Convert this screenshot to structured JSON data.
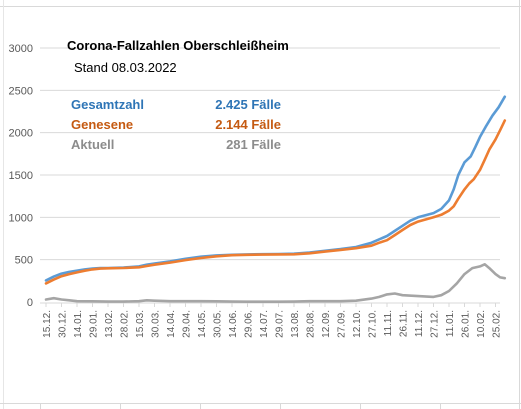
{
  "chart_data": {
    "type": "line",
    "title": "Corona-Fallzahlen Oberschleißheim",
    "subtitle": "Stand 08.03.2022",
    "ylim": [
      0,
      3000
    ],
    "yticks": [
      0,
      500,
      1000,
      1500,
      2000,
      2500,
      3000
    ],
    "grid": true,
    "legend_placement": "top-left",
    "x_labels": [
      "15.12.",
      "30.12.",
      "14.01.",
      "29.01.",
      "13.02.",
      "28.02.",
      "15.03.",
      "30.03.",
      "14.04.",
      "29.04.",
      "14.05.",
      "30.05.",
      "14.06.",
      "29.06.",
      "14.07.",
      "29.07.",
      "13.08.",
      "28.08.",
      "12.09.",
      "27.09.",
      "12.10.",
      "27.10.",
      "11.11.",
      "26.11.",
      "11.12.",
      "27.12.",
      "11.01.",
      "26.01.",
      "10.02.",
      "25.02."
    ],
    "series": [
      {
        "name": "Gesamtzahl",
        "color": "#5b9bd5",
        "value_label": "2.425 Fälle",
        "points": [
          [
            0,
            255
          ],
          [
            0.5,
            300
          ],
          [
            1,
            335
          ],
          [
            1.5,
            355
          ],
          [
            2,
            370
          ],
          [
            2.5,
            385
          ],
          [
            3,
            395
          ],
          [
            3.5,
            400
          ],
          [
            4,
            402
          ],
          [
            5,
            408
          ],
          [
            6,
            420
          ],
          [
            6.5,
            440
          ],
          [
            7,
            455
          ],
          [
            8,
            480
          ],
          [
            9,
            510
          ],
          [
            10,
            535
          ],
          [
            11,
            550
          ],
          [
            12,
            558
          ],
          [
            13,
            562
          ],
          [
            14,
            565
          ],
          [
            15,
            566
          ],
          [
            16,
            570
          ],
          [
            17,
            585
          ],
          [
            18,
            605
          ],
          [
            19,
            625
          ],
          [
            20,
            650
          ],
          [
            21,
            700
          ],
          [
            21.5,
            740
          ],
          [
            22,
            780
          ],
          [
            22.5,
            840
          ],
          [
            23,
            900
          ],
          [
            23.5,
            960
          ],
          [
            24,
            1000
          ],
          [
            25,
            1050
          ],
          [
            25.5,
            1100
          ],
          [
            26,
            1200
          ],
          [
            26.3,
            1330
          ],
          [
            26.6,
            1500
          ],
          [
            27,
            1650
          ],
          [
            27.4,
            1720
          ],
          [
            27.7,
            1830
          ],
          [
            28,
            1950
          ],
          [
            28.4,
            2080
          ],
          [
            28.8,
            2200
          ],
          [
            29.2,
            2300
          ],
          [
            29.6,
            2425
          ]
        ]
      },
      {
        "name": "Genesene",
        "color": "#ed7d31",
        "value_label": "2.144 Fälle",
        "points": [
          [
            0,
            220
          ],
          [
            0.5,
            265
          ],
          [
            1,
            305
          ],
          [
            1.5,
            330
          ],
          [
            2,
            350
          ],
          [
            2.5,
            370
          ],
          [
            3,
            385
          ],
          [
            3.5,
            395
          ],
          [
            4,
            398
          ],
          [
            5,
            402
          ],
          [
            6,
            410
          ],
          [
            6.5,
            425
          ],
          [
            7,
            440
          ],
          [
            8,
            465
          ],
          [
            9,
            495
          ],
          [
            10,
            520
          ],
          [
            11,
            540
          ],
          [
            12,
            553
          ],
          [
            13,
            558
          ],
          [
            14,
            560
          ],
          [
            15,
            562
          ],
          [
            16,
            563
          ],
          [
            17,
            575
          ],
          [
            18,
            595
          ],
          [
            19,
            615
          ],
          [
            20,
            635
          ],
          [
            21,
            665
          ],
          [
            21.5,
            700
          ],
          [
            22,
            730
          ],
          [
            22.5,
            790
          ],
          [
            23,
            850
          ],
          [
            23.5,
            910
          ],
          [
            24,
            950
          ],
          [
            25,
            1000
          ],
          [
            25.5,
            1030
          ],
          [
            26,
            1080
          ],
          [
            26.3,
            1130
          ],
          [
            26.6,
            1220
          ],
          [
            27,
            1330
          ],
          [
            27.3,
            1400
          ],
          [
            27.6,
            1450
          ],
          [
            28,
            1560
          ],
          [
            28.3,
            1680
          ],
          [
            28.6,
            1800
          ],
          [
            29,
            1920
          ],
          [
            29.3,
            2030
          ],
          [
            29.6,
            2144
          ]
        ]
      },
      {
        "name": "Aktuell",
        "color": "#a5a5a5",
        "value_label": "281 Fälle",
        "points": [
          [
            0,
            30
          ],
          [
            0.5,
            45
          ],
          [
            1,
            30
          ],
          [
            1.5,
            20
          ],
          [
            2,
            10
          ],
          [
            3,
            8
          ],
          [
            4,
            5
          ],
          [
            5,
            5
          ],
          [
            6,
            10
          ],
          [
            6.5,
            20
          ],
          [
            7,
            15
          ],
          [
            8,
            10
          ],
          [
            9,
            10
          ],
          [
            10,
            10
          ],
          [
            11,
            8
          ],
          [
            12,
            5
          ],
          [
            13,
            3
          ],
          [
            14,
            3
          ],
          [
            15,
            3
          ],
          [
            16,
            5
          ],
          [
            17,
            10
          ],
          [
            18,
            10
          ],
          [
            19,
            10
          ],
          [
            20,
            15
          ],
          [
            21,
            40
          ],
          [
            21.5,
            60
          ],
          [
            22,
            90
          ],
          [
            22.5,
            100
          ],
          [
            23,
            80
          ],
          [
            24,
            70
          ],
          [
            25,
            60
          ],
          [
            25.5,
            80
          ],
          [
            26,
            130
          ],
          [
            26.5,
            220
          ],
          [
            27,
            330
          ],
          [
            27.5,
            400
          ],
          [
            28,
            420
          ],
          [
            28.3,
            445
          ],
          [
            28.6,
            400
          ],
          [
            29,
            330
          ],
          [
            29.3,
            290
          ],
          [
            29.6,
            281
          ]
        ]
      }
    ]
  }
}
